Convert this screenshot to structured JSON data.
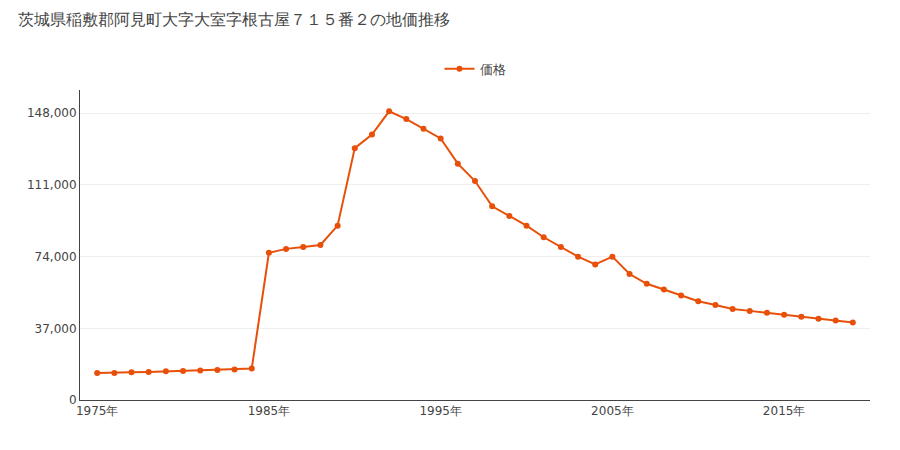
{
  "chart_data": {
    "type": "line",
    "title": "茨城県稲敷郡阿見町大字大室字根古屋７１５番２の地価推移",
    "x": [
      1975,
      1976,
      1977,
      1978,
      1979,
      1980,
      1981,
      1982,
      1983,
      1984,
      1985,
      1986,
      1987,
      1988,
      1989,
      1990,
      1991,
      1992,
      1993,
      1994,
      1995,
      1996,
      1997,
      1998,
      1999,
      2000,
      2001,
      2002,
      2003,
      2004,
      2005,
      2006,
      2007,
      2008,
      2009,
      2010,
      2011,
      2012,
      2013,
      2014,
      2015,
      2016,
      2017,
      2018,
      2019
    ],
    "series": [
      {
        "name": "価格",
        "color": "#E8500A",
        "marker": "circle",
        "values": [
          14000,
          14000,
          14300,
          14500,
          14800,
          15000,
          15200,
          15500,
          15800,
          16200,
          76000,
          78000,
          79000,
          80000,
          90000,
          130000,
          137000,
          149000,
          145000,
          140000,
          135000,
          122000,
          113000,
          100000,
          95000,
          90000,
          84000,
          79000,
          74000,
          70000,
          74000,
          65000,
          60000,
          57000,
          54000,
          51000,
          49000,
          47000,
          46000,
          45000,
          44000,
          43000,
          42000,
          41000,
          40000
        ]
      }
    ],
    "xlim": [
      1974,
      2020
    ],
    "xticks": [
      {
        "value": 1975,
        "label": "1975年"
      },
      {
        "value": 1985,
        "label": "1985年"
      },
      {
        "value": 1995,
        "label": "1995年"
      },
      {
        "value": 2005,
        "label": "2005年"
      },
      {
        "value": 2015,
        "label": "2015年"
      }
    ],
    "ylim": [
      0,
      160000
    ],
    "yticks": [
      0,
      {
        "value": 37000,
        "label": "37,000"
      },
      {
        "value": 74000,
        "label": "74,000"
      },
      {
        "value": 111000,
        "label": "111,000"
      },
      {
        "value": 148000,
        "label": "148,000"
      }
    ],
    "grid": "y",
    "legend": "top"
  }
}
